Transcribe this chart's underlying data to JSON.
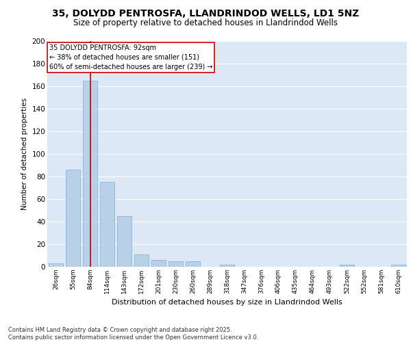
{
  "title_line1": "35, DOLYDD PENTROSFA, LLANDRINDOD WELLS, LD1 5NZ",
  "title_line2": "Size of property relative to detached houses in Llandrindod Wells",
  "xlabel": "Distribution of detached houses by size in Llandrindod Wells",
  "ylabel": "Number of detached properties",
  "categories": [
    "26sqm",
    "55sqm",
    "84sqm",
    "114sqm",
    "143sqm",
    "172sqm",
    "201sqm",
    "230sqm",
    "260sqm",
    "289sqm",
    "318sqm",
    "347sqm",
    "376sqm",
    "406sqm",
    "435sqm",
    "464sqm",
    "493sqm",
    "522sqm",
    "552sqm",
    "581sqm",
    "610sqm"
  ],
  "values": [
    3,
    86,
    165,
    75,
    45,
    11,
    6,
    5,
    5,
    0,
    2,
    0,
    0,
    0,
    0,
    0,
    0,
    2,
    0,
    0,
    2
  ],
  "bar_color": "#b8d0e8",
  "bar_edge_color": "#7aaed6",
  "property_bar_index": 2,
  "annotation_title": "35 DOLYDD PENTROSFA: 92sqm",
  "annotation_line2": "← 38% of detached houses are smaller (151)",
  "annotation_line3": "60% of semi-detached houses are larger (239) →",
  "vline_color": "#cc0000",
  "annotation_box_facecolor": "#ffffff",
  "annotation_box_edgecolor": "#cc0000",
  "ylim": [
    0,
    200
  ],
  "yticks": [
    0,
    20,
    40,
    60,
    80,
    100,
    120,
    140,
    160,
    180,
    200
  ],
  "plot_bg_color": "#dce8f5",
  "grid_color": "#ffffff",
  "fig_bg_color": "#ffffff",
  "footer": "Contains HM Land Registry data © Crown copyright and database right 2025.\nContains public sector information licensed under the Open Government Licence v3.0."
}
